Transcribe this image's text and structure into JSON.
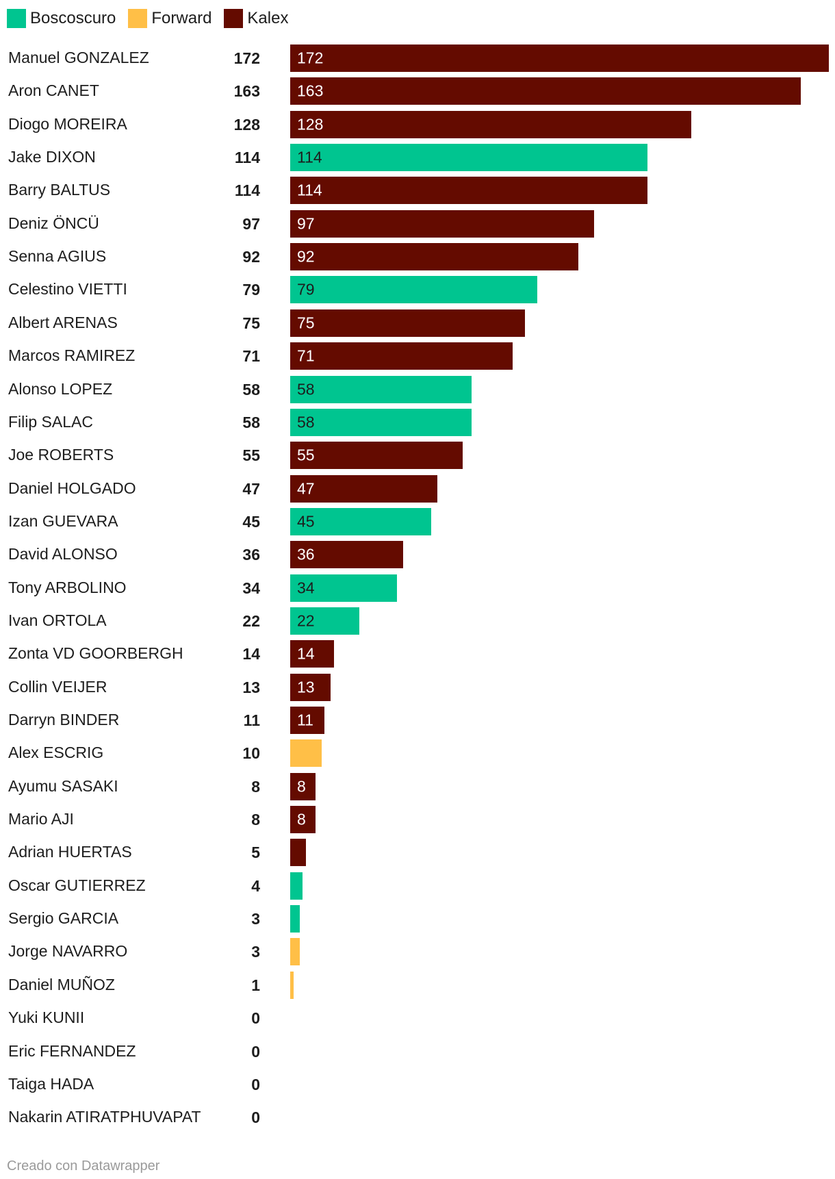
{
  "colors": {
    "Boscoscuro": "#00c590",
    "Forward": "#ffbf47",
    "Kalex": "#640b00",
    "text": "#1d1d1d",
    "footer": "#9a9a9a"
  },
  "chart_data": {
    "type": "bar",
    "orientation": "horizontal",
    "legend_position": "top-left",
    "legend": [
      "Boscoscuro",
      "Forward",
      "Kalex"
    ],
    "xlim": [
      0,
      172
    ],
    "rows": [
      {
        "name": "Manuel GONZALEZ",
        "value": 172,
        "team": "Kalex",
        "label": "172"
      },
      {
        "name": "Aron CANET",
        "value": 163,
        "team": "Kalex",
        "label": "163"
      },
      {
        "name": "Diogo MOREIRA",
        "value": 128,
        "team": "Kalex",
        "label": "128"
      },
      {
        "name": "Jake DIXON",
        "value": 114,
        "team": "Boscoscuro",
        "label": "114"
      },
      {
        "name": "Barry BALTUS",
        "value": 114,
        "team": "Kalex",
        "label": "114"
      },
      {
        "name": "Deniz ÖNCÜ",
        "value": 97,
        "team": "Kalex",
        "label": "97"
      },
      {
        "name": "Senna AGIUS",
        "value": 92,
        "team": "Kalex",
        "label": "92"
      },
      {
        "name": "Celestino VIETTI",
        "value": 79,
        "team": "Boscoscuro",
        "label": "79"
      },
      {
        "name": "Albert ARENAS",
        "value": 75,
        "team": "Kalex",
        "label": "75"
      },
      {
        "name": "Marcos RAMIREZ",
        "value": 71,
        "team": "Kalex",
        "label": "71"
      },
      {
        "name": "Alonso LOPEZ",
        "value": 58,
        "team": "Boscoscuro",
        "label": "58"
      },
      {
        "name": "Filip SALAC",
        "value": 58,
        "team": "Boscoscuro",
        "label": "58"
      },
      {
        "name": "Joe ROBERTS",
        "value": 55,
        "team": "Kalex",
        "label": "55"
      },
      {
        "name": "Daniel HOLGADO",
        "value": 47,
        "team": "Kalex",
        "label": "47"
      },
      {
        "name": "Izan GUEVARA",
        "value": 45,
        "team": "Boscoscuro",
        "label": "45"
      },
      {
        "name": "David ALONSO",
        "value": 36,
        "team": "Kalex",
        "label": "36"
      },
      {
        "name": "Tony ARBOLINO",
        "value": 34,
        "team": "Boscoscuro",
        "label": "34"
      },
      {
        "name": "Ivan ORTOLA",
        "value": 22,
        "team": "Boscoscuro",
        "label": "22"
      },
      {
        "name": "Zonta VD GOORBERGH",
        "value": 14,
        "team": "Kalex",
        "label": "14"
      },
      {
        "name": "Collin VEIJER",
        "value": 13,
        "team": "Kalex",
        "label": "13"
      },
      {
        "name": "Darryn BINDER",
        "value": 11,
        "team": "Kalex",
        "label": "11"
      },
      {
        "name": "Alex ESCRIG",
        "value": 10,
        "team": "Forward",
        "label": ""
      },
      {
        "name": "Ayumu SASAKI",
        "value": 8,
        "team": "Kalex",
        "label": "8"
      },
      {
        "name": "Mario AJI",
        "value": 8,
        "team": "Kalex",
        "label": "8"
      },
      {
        "name": "Adrian HUERTAS",
        "value": 5,
        "team": "Kalex",
        "label": ""
      },
      {
        "name": "Oscar GUTIERREZ",
        "value": 4,
        "team": "Boscoscuro",
        "label": ""
      },
      {
        "name": "Sergio GARCIA",
        "value": 3,
        "team": "Boscoscuro",
        "label": ""
      },
      {
        "name": "Jorge NAVARRO",
        "value": 3,
        "team": "Forward",
        "label": ""
      },
      {
        "name": "Daniel MUÑOZ",
        "value": 1,
        "team": "Forward",
        "label": ""
      },
      {
        "name": "Yuki KUNII",
        "value": 0,
        "team": "",
        "label": ""
      },
      {
        "name": "Eric FERNANDEZ",
        "value": 0,
        "team": "",
        "label": ""
      },
      {
        "name": "Taiga HADA",
        "value": 0,
        "team": "",
        "label": ""
      },
      {
        "name": "Nakarin ATIRATPHUVAPAT",
        "value": 0,
        "team": "",
        "label": ""
      }
    ]
  },
  "footer": "Creado con Datawrapper"
}
